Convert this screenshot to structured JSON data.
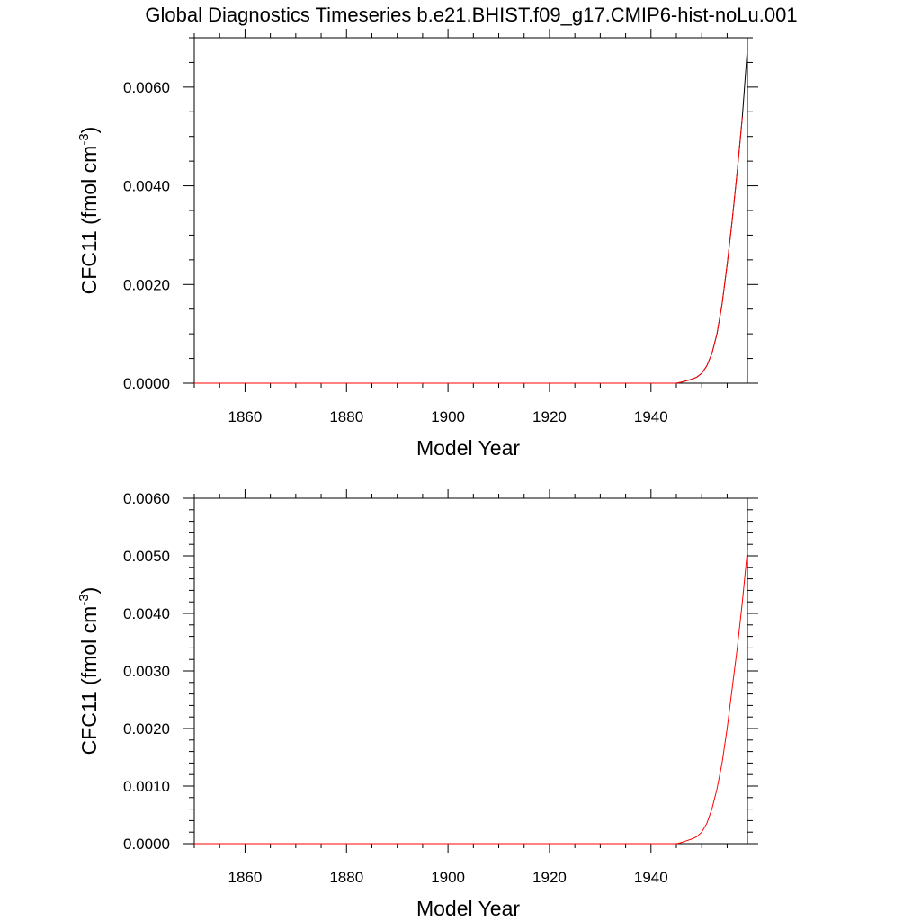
{
  "title": "Global Diagnostics Timeseries b.e21.BHIST.f09_g17.CMIP6-hist-noLu.001",
  "chart_data": [
    {
      "type": "line",
      "xlabel": "Model Year",
      "ylabel_main": "CFC11 (fmol cm",
      "ylabel_sup": "-3",
      "ylabel_close": ")",
      "xlim": [
        1850,
        1959
      ],
      "ylim": [
        0,
        0.007
      ],
      "x_ticks": [
        1860,
        1880,
        1900,
        1920,
        1940
      ],
      "x_tick_labels": [
        "1860",
        "1880",
        "1900",
        "1920",
        "1940"
      ],
      "y_ticks": [
        0,
        0.002,
        0.004,
        0.006
      ],
      "y_tick_labels": [
        "0.0000",
        "0.0020",
        "0.0040",
        "0.0060"
      ],
      "y_minor_step": 0.0005,
      "grid": false,
      "series": [
        {
          "color": "#000000",
          "x": [
            1850,
            1945,
            1946,
            1947,
            1948,
            1949,
            1950,
            1951,
            1952,
            1953,
            1954,
            1955,
            1956,
            1957,
            1958,
            1959
          ],
          "y": [
            0,
            0,
            2e-05,
            5e-05,
            8e-05,
            0.00012,
            0.0002,
            0.00035,
            0.0006,
            0.001,
            0.0016,
            0.0024,
            0.0033,
            0.0043,
            0.0054,
            0.0068
          ]
        },
        {
          "color": "#ff0000",
          "x": [
            1850,
            1945,
            1946,
            1947,
            1948,
            1949,
            1950,
            1951,
            1952,
            1953,
            1954,
            1955,
            1956,
            1957,
            1958
          ],
          "y": [
            0,
            0,
            2e-05,
            5e-05,
            8e-05,
            0.00012,
            0.0002,
            0.00035,
            0.0006,
            0.001,
            0.0016,
            0.0024,
            0.0033,
            0.0043,
            0.0054
          ]
        }
      ]
    },
    {
      "type": "line",
      "xlabel": "Model Year",
      "ylabel_main": "CFC11 (fmol cm",
      "ylabel_sup": "-3",
      "ylabel_close": ")",
      "xlim": [
        1850,
        1959
      ],
      "ylim": [
        0,
        0.006
      ],
      "x_ticks": [
        1860,
        1880,
        1900,
        1920,
        1940
      ],
      "x_tick_labels": [
        "1860",
        "1880",
        "1900",
        "1920",
        "1940"
      ],
      "y_ticks": [
        0,
        0.001,
        0.002,
        0.003,
        0.004,
        0.005,
        0.006
      ],
      "y_tick_labels": [
        "0.0000",
        "0.0010",
        "0.0020",
        "0.0030",
        "0.0040",
        "0.0050",
        "0.0060"
      ],
      "y_minor_step": 0.0002,
      "grid": false,
      "series": [
        {
          "color": "#ff0000",
          "x": [
            1850,
            1945,
            1946,
            1947,
            1948,
            1949,
            1950,
            1951,
            1952,
            1953,
            1954,
            1955,
            1956,
            1957,
            1958,
            1959
          ],
          "y": [
            0,
            0,
            2e-05,
            5e-05,
            8e-05,
            0.00012,
            0.0002,
            0.00035,
            0.0006,
            0.00095,
            0.0014,
            0.002,
            0.0027,
            0.0034,
            0.0042,
            0.0051
          ]
        }
      ]
    }
  ]
}
